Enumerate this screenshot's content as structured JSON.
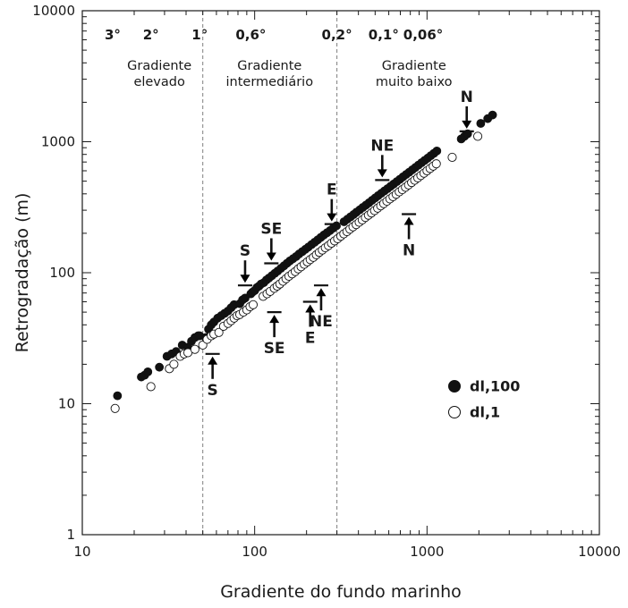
{
  "chart_data": {
    "type": "scatter",
    "xlabel": "Gradiente do fundo marinho",
    "ylabel": "Retrogradação (m)",
    "xscale": "log",
    "yscale": "log",
    "xlim": [
      10,
      10000
    ],
    "ylim": [
      1,
      10000
    ],
    "x_ticks": [
      "10",
      "100",
      "1000",
      "10000"
    ],
    "y_ticks": [
      "1",
      "10",
      "100",
      "1000",
      "10000"
    ],
    "grid": false,
    "legend": {
      "placement": "bottom-right",
      "entries": [
        {
          "label": "dl,100",
          "marker": "filled-circle"
        },
        {
          "label": "dl,1",
          "marker": "open-circle"
        }
      ]
    },
    "slope_labels": [
      {
        "text": "3°",
        "x": 15
      },
      {
        "text": "2°",
        "x": 25
      },
      {
        "text": "1°",
        "x": 48
      },
      {
        "text": "0,6°",
        "x": 95
      },
      {
        "text": "0,2°",
        "x": 300
      },
      {
        "text": "0,1°",
        "x": 560
      },
      {
        "text": "0,06°",
        "x": 950
      }
    ],
    "boundaries": [
      {
        "x": 50,
        "style": "dashed"
      },
      {
        "x": 300,
        "style": "dashed"
      }
    ],
    "regions": [
      {
        "lines": [
          "Gradiente",
          "elevado"
        ],
        "x": 28
      },
      {
        "lines": [
          "Gradiente",
          "intermediário"
        ],
        "x": 122
      },
      {
        "lines": [
          "Gradiente",
          "muito baixo"
        ],
        "x": 840
      }
    ],
    "series": [
      {
        "name": "dl,100",
        "marker": "filled",
        "points": [
          [
            16,
            11.5
          ],
          [
            22,
            16
          ],
          [
            23,
            16.5
          ],
          [
            24,
            17.5
          ],
          [
            28,
            19
          ],
          [
            31,
            23
          ],
          [
            33,
            24
          ],
          [
            35,
            25
          ],
          [
            38,
            28
          ],
          [
            41,
            27
          ],
          [
            43,
            30
          ],
          [
            45,
            32
          ],
          [
            47,
            33
          ],
          [
            48,
            33
          ],
          [
            52,
            32
          ],
          [
            54,
            37
          ],
          [
            56,
            40
          ],
          [
            58,
            42
          ],
          [
            61,
            45
          ],
          [
            64,
            47
          ],
          [
            67,
            49
          ],
          [
            70,
            51
          ],
          [
            73,
            54
          ],
          [
            76,
            57
          ],
          [
            82,
            58
          ],
          [
            85,
            62
          ],
          [
            88,
            64
          ],
          [
            95,
            69
          ],
          [
            97,
            71
          ],
          [
            100,
            73
          ],
          [
            103,
            77
          ],
          [
            106,
            79
          ],
          [
            109,
            82
          ],
          [
            113,
            84
          ],
          [
            117,
            88
          ],
          [
            121,
            91
          ],
          [
            126,
            95
          ],
          [
            131,
            99
          ],
          [
            136,
            103
          ],
          [
            142,
            108
          ],
          [
            148,
            113
          ],
          [
            154,
            118
          ],
          [
            160,
            123
          ],
          [
            167,
            128
          ],
          [
            174,
            133
          ],
          [
            181,
            139
          ],
          [
            189,
            145
          ],
          [
            197,
            151
          ],
          [
            205,
            157
          ],
          [
            214,
            164
          ],
          [
            223,
            171
          ],
          [
            232,
            178
          ],
          [
            242,
            186
          ],
          [
            252,
            194
          ],
          [
            263,
            202
          ],
          [
            274,
            210
          ],
          [
            286,
            219
          ],
          [
            298,
            228
          ],
          [
            330,
            245
          ],
          [
            345,
            256
          ],
          [
            360,
            267
          ],
          [
            375,
            278
          ],
          [
            390,
            290
          ],
          [
            407,
            302
          ],
          [
            424,
            315
          ],
          [
            442,
            328
          ],
          [
            461,
            342
          ],
          [
            480,
            357
          ],
          [
            500,
            372
          ],
          [
            521,
            388
          ],
          [
            543,
            404
          ],
          [
            566,
            421
          ],
          [
            590,
            438
          ],
          [
            615,
            457
          ],
          [
            641,
            476
          ],
          [
            668,
            496
          ],
          [
            696,
            517
          ],
          [
            725,
            539
          ],
          [
            756,
            562
          ],
          [
            788,
            585
          ],
          [
            821,
            610
          ],
          [
            856,
            636
          ],
          [
            892,
            663
          ],
          [
            930,
            691
          ],
          [
            969,
            720
          ],
          [
            1010,
            750
          ],
          [
            1052,
            782
          ],
          [
            1096,
            815
          ],
          [
            1140,
            850
          ],
          [
            1580,
            1050
          ],
          [
            1650,
            1100
          ],
          [
            1720,
            1150
          ],
          [
            2050,
            1380
          ],
          [
            2250,
            1500
          ],
          [
            2400,
            1600
          ]
        ]
      },
      {
        "name": "dl,1",
        "marker": "open",
        "points": [
          [
            15.5,
            9.2
          ],
          [
            25,
            13.5
          ],
          [
            32,
            18.5
          ],
          [
            34,
            20
          ],
          [
            37,
            23
          ],
          [
            39,
            24
          ],
          [
            41,
            24.5
          ],
          [
            45,
            26
          ],
          [
            50,
            28
          ],
          [
            53,
            31
          ],
          [
            56,
            33
          ],
          [
            58,
            34
          ],
          [
            62,
            35
          ],
          [
            66,
            39
          ],
          [
            70,
            41
          ],
          [
            73,
            43
          ],
          [
            76,
            45
          ],
          [
            79,
            47
          ],
          [
            82,
            48
          ],
          [
            86,
            50
          ],
          [
            90,
            52
          ],
          [
            94,
            55
          ],
          [
            98,
            57
          ],
          [
            112,
            66
          ],
          [
            118,
            69
          ],
          [
            123,
            72
          ],
          [
            130,
            76
          ],
          [
            135,
            79
          ],
          [
            140,
            82
          ],
          [
            146,
            86
          ],
          [
            152,
            90
          ],
          [
            158,
            94
          ],
          [
            165,
            98
          ],
          [
            172,
            102
          ],
          [
            179,
            107
          ],
          [
            186,
            111
          ],
          [
            194,
            116
          ],
          [
            202,
            121
          ],
          [
            210,
            126
          ],
          [
            219,
            131
          ],
          [
            228,
            137
          ],
          [
            237,
            143
          ],
          [
            247,
            149
          ],
          [
            257,
            155
          ],
          [
            268,
            161
          ],
          [
            279,
            168
          ],
          [
            291,
            175
          ],
          [
            303,
            182
          ],
          [
            316,
            190
          ],
          [
            329,
            198
          ],
          [
            343,
            206
          ],
          [
            357,
            215
          ],
          [
            372,
            224
          ],
          [
            388,
            233
          ],
          [
            404,
            243
          ],
          [
            421,
            253
          ],
          [
            439,
            264
          ],
          [
            457,
            275
          ],
          [
            476,
            286
          ],
          [
            496,
            298
          ],
          [
            517,
            311
          ],
          [
            539,
            324
          ],
          [
            561,
            337
          ],
          [
            585,
            351
          ],
          [
            609,
            366
          ],
          [
            635,
            381
          ],
          [
            662,
            397
          ],
          [
            690,
            414
          ],
          [
            719,
            431
          ],
          [
            750,
            449
          ],
          [
            781,
            468
          ],
          [
            814,
            488
          ],
          [
            848,
            508
          ],
          [
            884,
            530
          ],
          [
            921,
            552
          ],
          [
            960,
            575
          ],
          [
            1000,
            600
          ],
          [
            1042,
            625
          ],
          [
            1086,
            651
          ],
          [
            1132,
            678
          ],
          [
            1400,
            760
          ],
          [
            1970,
            1100
          ]
        ]
      }
    ],
    "annotations": [
      {
        "text": "S",
        "x": 57,
        "bar_y": 24,
        "side": "below"
      },
      {
        "text": "S",
        "x": 88,
        "bar_y": 80,
        "side": "above"
      },
      {
        "text": "SE",
        "x": 130,
        "bar_y": 50,
        "side": "below"
      },
      {
        "text": "SE",
        "x": 125,
        "bar_y": 118,
        "side": "above"
      },
      {
        "text": "E",
        "x": 210,
        "bar_y": 60,
        "side": "below"
      },
      {
        "text": "NE",
        "x": 243,
        "bar_y": 80,
        "side": "below"
      },
      {
        "text": "E",
        "x": 280,
        "bar_y": 235,
        "side": "above"
      },
      {
        "text": "NE",
        "x": 550,
        "bar_y": 510,
        "side": "above"
      },
      {
        "text": "N",
        "x": 785,
        "bar_y": 280,
        "side": "below"
      },
      {
        "text": "N",
        "x": 1700,
        "bar_y": 1200,
        "side": "above"
      }
    ]
  }
}
